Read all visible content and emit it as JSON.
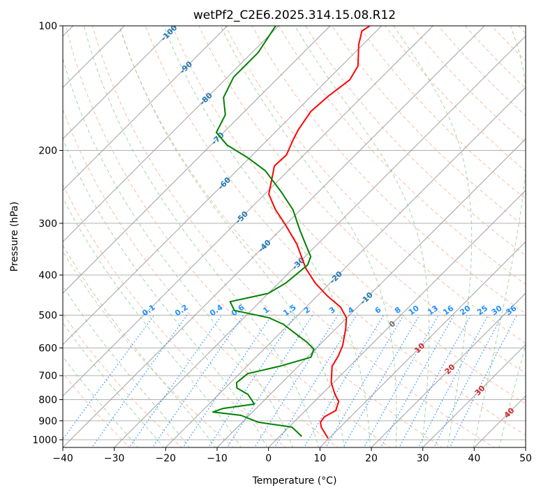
{
  "chart_data": {
    "type": "line",
    "subtype": "skew-t log-p",
    "title": "wetPf2_C2E6.2025.314.15.08.R12",
    "xlabel": "Temperature (°C)",
    "ylabel": "Pressure (hPa)",
    "xlim": [
      -40,
      50
    ],
    "ylim": [
      1050,
      100
    ],
    "x_ticks": [
      "−40",
      "−30",
      "−20",
      "−10",
      "0",
      "10",
      "20",
      "30",
      "40",
      "50"
    ],
    "x_tick_values": [
      -40,
      -30,
      -20,
      -10,
      0,
      10,
      20,
      30,
      40,
      50
    ],
    "y_ticks": [
      "100",
      "200",
      "300",
      "400",
      "500",
      "600",
      "700",
      "800",
      "900",
      "1000"
    ],
    "y_tick_values": [
      100,
      200,
      300,
      400,
      500,
      600,
      700,
      800,
      900,
      1000
    ],
    "grid": true,
    "colors": {
      "temperature": "#ff0000",
      "dewpoint": "#008000",
      "isotherm": "#a0a0a0",
      "dry_adiabat": "#f4a582",
      "moist_adiabat": "#8fc98f",
      "mixing_ratio": "#1e90ff",
      "isotherm_label": "#1f77b4"
    },
    "series": [
      {
        "name": "Temperature",
        "pressure": [
          992,
          932,
          907,
          880,
          850,
          808,
          777,
          728,
          665,
          628,
          592,
          537,
          507,
          478,
          450,
          418,
          386,
          337,
          303,
          278,
          255,
          218,
          205,
          188,
          178,
          161,
          148,
          135,
          125,
          111,
          103,
          100
        ],
        "temperature": [
          9.8,
          6.3,
          5.2,
          4.9,
          5.9,
          4.7,
          2.6,
          -0.4,
          -3.4,
          -4.2,
          -5.4,
          -8.2,
          -10.1,
          -13.3,
          -17.9,
          -22.9,
          -27.5,
          -34.0,
          -39.9,
          -44.9,
          -49.2,
          -53.6,
          -53.4,
          -55.1,
          -56.0,
          -57.1,
          -56.7,
          -55.7,
          -56.8,
          -60.8,
          -62.8,
          -62.3
        ]
      },
      {
        "name": "Dewpoint",
        "pressure": [
          981,
          932,
          907,
          873,
          857,
          840,
          820,
          777,
          750,
          728,
          692,
          665,
          632,
          604,
          581,
          526,
          507,
          487,
          464,
          443,
          418,
          378,
          361,
          344,
          312,
          278,
          252,
          224,
          208,
          194,
          181,
          164,
          149,
          133,
          116,
          100
        ],
        "temperature": [
          4.3,
          0.6,
          -6.9,
          -11.6,
          -17.7,
          -16.4,
          -11.2,
          -14.3,
          -17.7,
          -18.8,
          -18.4,
          -13.7,
          -9.3,
          -10.3,
          -13.0,
          -21.1,
          -25.2,
          -33.3,
          -35.8,
          -30.0,
          -28.6,
          -27.9,
          -28.9,
          -31.3,
          -36.1,
          -41.5,
          -47.2,
          -54.4,
          -60.5,
          -66.9,
          -71.4,
          -73.1,
          -76.8,
          -78.8,
          -78.8,
          -80.6
        ]
      }
    ],
    "isotherm_labels": [
      "-100",
      "-90",
      "-80",
      "-70",
      "-60",
      "-50",
      "-40",
      "-30",
      "-20",
      "-10",
      "0",
      "10",
      "20",
      "30",
      "40"
    ],
    "mixing_ratio_labels": [
      "0.1",
      "0.2",
      "0.4",
      "0.6",
      "1",
      "1.5",
      "2",
      "3",
      "4",
      "6",
      "8",
      "10",
      "13",
      "16",
      "20",
      "25",
      "30",
      "36"
    ]
  }
}
